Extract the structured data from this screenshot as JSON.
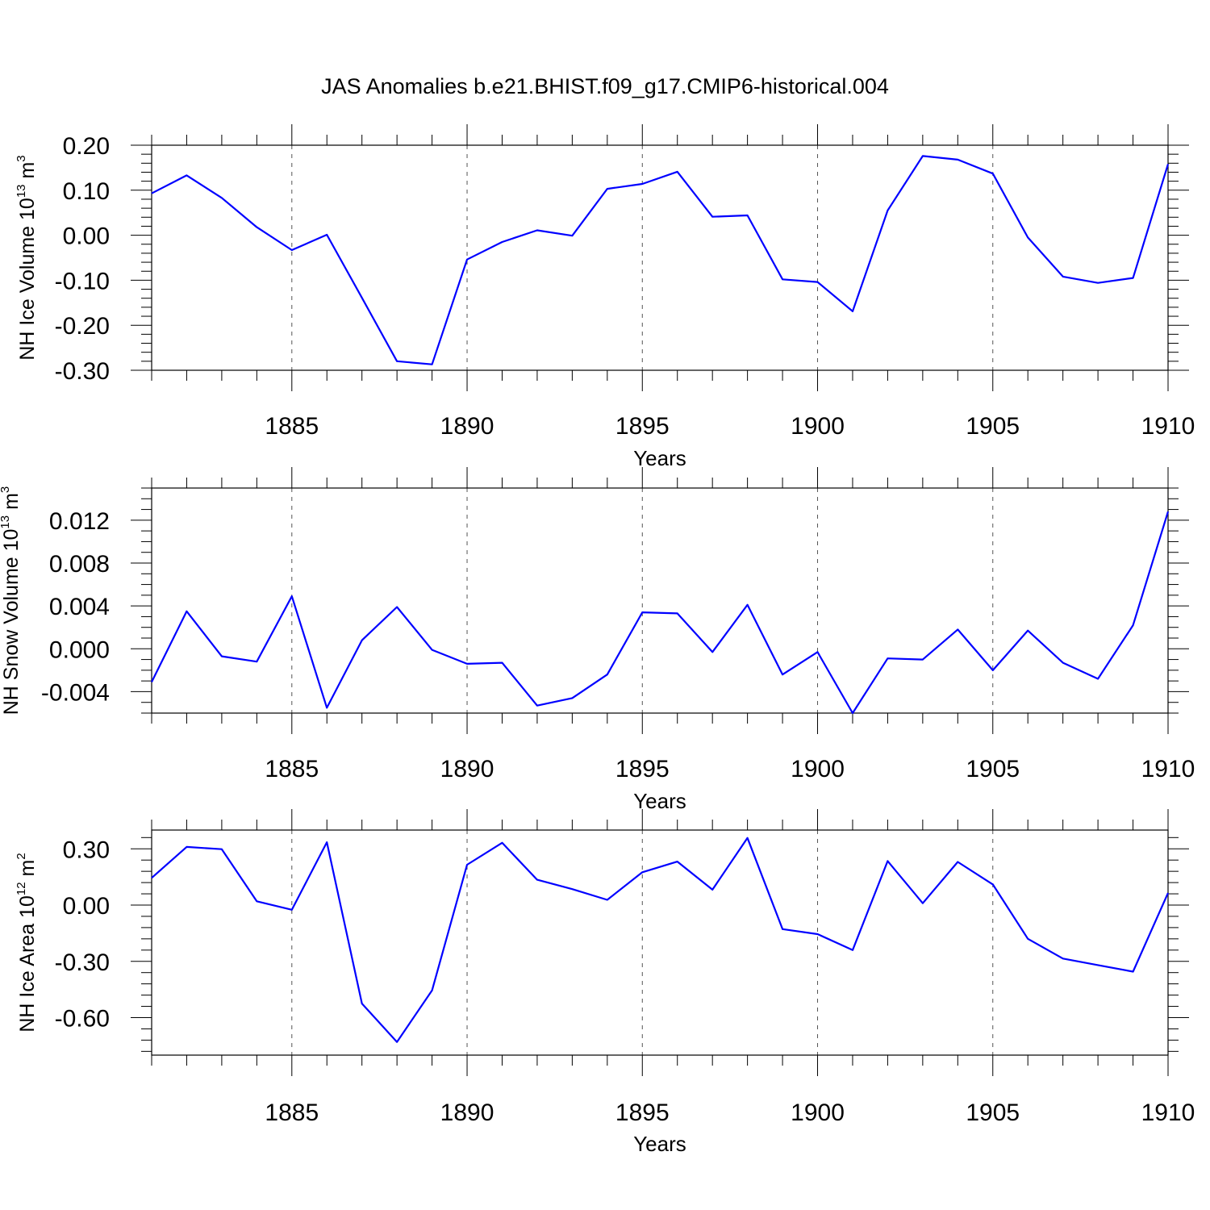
{
  "figure": {
    "title": "JAS Anomalies b.e21.BHIST.f09_g17.CMIP6-historical.004",
    "line_color": "#0000ff",
    "grid_color": "#555555"
  },
  "chart_data": [
    {
      "type": "line",
      "ylabel": {
        "text": "NH Ice Volume 10",
        "sup1": "13",
        "mid": " m",
        "sup2": "3"
      },
      "xlabel": "Years",
      "xlim": [
        1881,
        1910
      ],
      "ylim": [
        -0.3,
        0.2
      ],
      "yticks": [
        -0.3,
        -0.2,
        -0.1,
        0.0,
        0.1,
        0.2
      ],
      "ytick_labels": [
        "-0.30",
        "-0.20",
        "-0.10",
        "0.00",
        "0.10",
        "0.20"
      ],
      "yminor_step": 0.02,
      "xticks": [
        1885,
        1890,
        1895,
        1900,
        1905,
        1910
      ],
      "xtick_labels": [
        "1885",
        "1890",
        "1895",
        "1900",
        "1905",
        "1910"
      ],
      "grid": "x-dashed",
      "x": [
        1881,
        1882,
        1883,
        1884,
        1885,
        1886,
        1887,
        1888,
        1889,
        1890,
        1891,
        1892,
        1893,
        1894,
        1895,
        1896,
        1897,
        1898,
        1899,
        1900,
        1901,
        1902,
        1903,
        1904,
        1905,
        1906,
        1907,
        1908,
        1909,
        1910
      ],
      "y": [
        0.093,
        0.133,
        0.083,
        0.018,
        -0.033,
        0.001,
        -0.139,
        -0.28,
        -0.287,
        -0.054,
        -0.015,
        0.011,
        -0.001,
        0.103,
        0.114,
        0.141,
        0.041,
        0.044,
        -0.098,
        -0.104,
        -0.169,
        0.055,
        0.176,
        0.168,
        0.137,
        -0.005,
        -0.092,
        -0.106,
        -0.095,
        0.158
      ]
    },
    {
      "type": "line",
      "ylabel": {
        "text": "NH Snow Volume 10",
        "sup1": "13",
        "mid": " m",
        "sup2": "3"
      },
      "xlabel": "Years",
      "xlim": [
        1881,
        1910
      ],
      "ylim": [
        -0.006,
        0.015
      ],
      "yticks": [
        -0.004,
        0.0,
        0.004,
        0.008,
        0.012
      ],
      "ytick_labels": [
        "-0.004",
        "0.000",
        "0.004",
        "0.008",
        "0.012"
      ],
      "yminor_step": 0.001,
      "xticks": [
        1885,
        1890,
        1895,
        1900,
        1905,
        1910
      ],
      "xtick_labels": [
        "1885",
        "1890",
        "1895",
        "1900",
        "1905",
        "1910"
      ],
      "grid": "x-dashed",
      "x": [
        1881,
        1882,
        1883,
        1884,
        1885,
        1886,
        1887,
        1888,
        1889,
        1890,
        1891,
        1892,
        1893,
        1894,
        1895,
        1896,
        1897,
        1898,
        1899,
        1900,
        1901,
        1902,
        1903,
        1904,
        1905,
        1906,
        1907,
        1908,
        1909,
        1910
      ],
      "y": [
        -0.0031,
        0.0035,
        -0.0007,
        -0.0012,
        0.0049,
        -0.0055,
        0.0008,
        0.0039,
        -0.0001,
        -0.0014,
        -0.0013,
        -0.0053,
        -0.0046,
        -0.0024,
        0.0034,
        0.0033,
        -0.0003,
        0.0041,
        -0.0024,
        -0.0003,
        -0.006,
        -0.0009,
        -0.001,
        0.0018,
        -0.002,
        0.0017,
        -0.0013,
        -0.0028,
        0.0022,
        0.0128
      ]
    },
    {
      "type": "line",
      "ylabel": {
        "text": "NH Ice Area 10",
        "sup1": "12",
        "mid": " m",
        "sup2": "2"
      },
      "xlabel": "Years",
      "xlim": [
        1881,
        1910
      ],
      "ylim": [
        -0.8,
        0.4
      ],
      "yticks": [
        -0.6,
        -0.3,
        0.0,
        0.3
      ],
      "ytick_labels": [
        "-0.60",
        "-0.30",
        "0.00",
        "0.30"
      ],
      "yminor_step": 0.06,
      "xticks": [
        1885,
        1890,
        1895,
        1900,
        1905,
        1910
      ],
      "xtick_labels": [
        "1885",
        "1890",
        "1895",
        "1900",
        "1905",
        "1910"
      ],
      "grid": "x-dashed",
      "x": [
        1881,
        1882,
        1883,
        1884,
        1885,
        1886,
        1887,
        1888,
        1889,
        1890,
        1891,
        1892,
        1893,
        1894,
        1895,
        1896,
        1897,
        1898,
        1899,
        1900,
        1901,
        1902,
        1903,
        1904,
        1905,
        1906,
        1907,
        1908,
        1909,
        1910
      ],
      "y": [
        0.145,
        0.31,
        0.298,
        0.02,
        -0.025,
        0.335,
        -0.525,
        -0.73,
        -0.455,
        0.215,
        0.332,
        0.135,
        0.085,
        0.028,
        0.175,
        0.232,
        0.082,
        0.358,
        -0.128,
        -0.155,
        -0.24,
        0.235,
        0.01,
        0.23,
        0.11,
        -0.18,
        -0.285,
        -0.32,
        -0.355,
        0.065
      ]
    }
  ]
}
